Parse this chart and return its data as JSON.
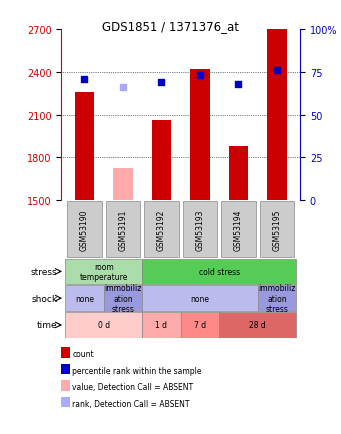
{
  "title": "GDS1851 / 1371376_at",
  "samples": [
    "GSM53190",
    "GSM53191",
    "GSM53192",
    "GSM53193",
    "GSM53194",
    "GSM53195"
  ],
  "bar_bottom": 1500,
  "count_values": [
    2260,
    null,
    2060,
    2420,
    1880,
    2700
  ],
  "count_absent_values": [
    null,
    1720,
    null,
    null,
    null,
    null
  ],
  "rank_values": [
    71,
    null,
    69,
    73,
    68,
    76
  ],
  "rank_absent_values": [
    null,
    66,
    null,
    null,
    null,
    null
  ],
  "ylim_left": [
    1500,
    2700
  ],
  "ylim_right": [
    0,
    100
  ],
  "yticks_left": [
    1500,
    1800,
    2100,
    2400,
    2700
  ],
  "yticks_right": [
    0,
    25,
    50,
    75,
    100
  ],
  "bar_color_present": "#cc0000",
  "bar_color_absent": "#ffaaaa",
  "dot_color_present": "#0000cc",
  "dot_color_absent": "#aaaaff",
  "stress_row": [
    {
      "label": "room\ntemperature",
      "span": [
        0,
        2
      ],
      "color": "#aaddaa"
    },
    {
      "label": "cold stress",
      "span": [
        2,
        6
      ],
      "color": "#55cc55"
    }
  ],
  "shock_row": [
    {
      "label": "none",
      "span": [
        0,
        1
      ],
      "color": "#bbbbee"
    },
    {
      "label": "immobiliz\nation\nstress",
      "span": [
        1,
        2
      ],
      "color": "#9999dd"
    },
    {
      "label": "none",
      "span": [
        2,
        5
      ],
      "color": "#bbbbee"
    },
    {
      "label": "immobiliz\nation\nstress",
      "span": [
        5,
        6
      ],
      "color": "#9999dd"
    }
  ],
  "time_row": [
    {
      "label": "0 d",
      "span": [
        0,
        2
      ],
      "color": "#ffcccc"
    },
    {
      "label": "1 d",
      "span": [
        2,
        3
      ],
      "color": "#ffaaaa"
    },
    {
      "label": "7 d",
      "span": [
        3,
        4
      ],
      "color": "#ff8888"
    },
    {
      "label": "28 d",
      "span": [
        4,
        6
      ],
      "color": "#dd6666"
    }
  ],
  "row_labels": [
    "stress",
    "shock",
    "time"
  ],
  "legend_items": [
    {
      "color": "#cc0000",
      "label": "count"
    },
    {
      "color": "#0000cc",
      "label": "percentile rank within the sample"
    },
    {
      "color": "#ffaaaa",
      "label": "value, Detection Call = ABSENT"
    },
    {
      "color": "#aaaaff",
      "label": "rank, Detection Call = ABSENT"
    }
  ],
  "xlabel_color_left": "#cc0000",
  "xlabel_color_right": "#0000cc",
  "sample_box_color": "#cccccc",
  "sample_box_edge": "#888888"
}
